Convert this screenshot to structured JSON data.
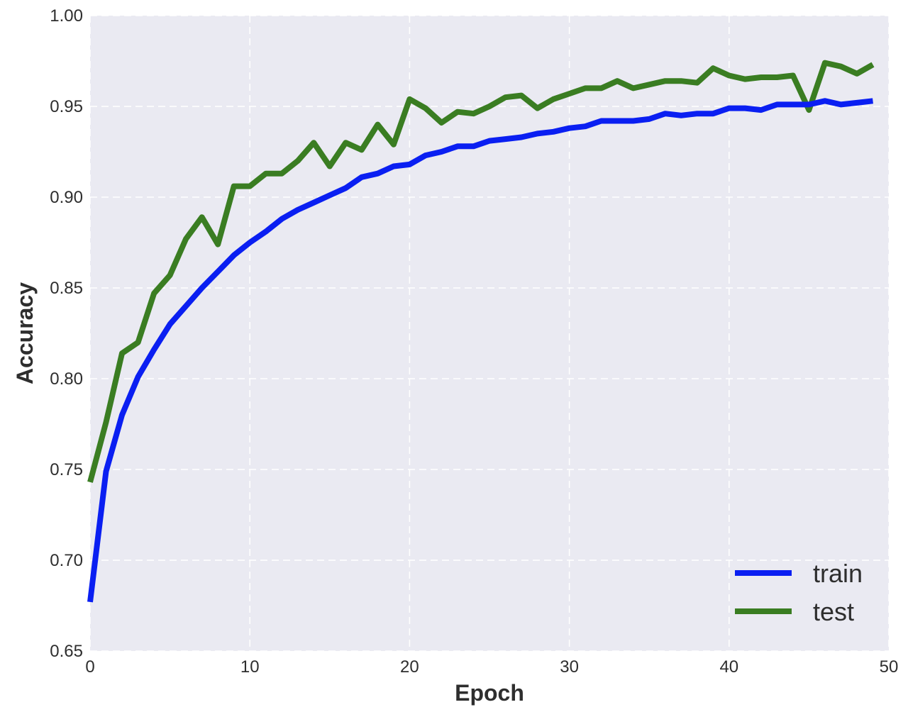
{
  "chart_data": {
    "type": "line",
    "title": "",
    "xlabel": "Epoch",
    "ylabel": "Accuracy",
    "xlim": [
      0,
      50
    ],
    "ylim": [
      0.65,
      1.0
    ],
    "xticks": [
      0,
      10,
      20,
      30,
      40,
      50
    ],
    "xtick_labels": [
      "0",
      "10",
      "20",
      "30",
      "40",
      "50"
    ],
    "yticks": [
      0.65,
      0.7,
      0.75,
      0.8,
      0.85,
      0.9,
      0.95,
      1.0
    ],
    "ytick_labels": [
      "0.65",
      "0.70",
      "0.75",
      "0.80",
      "0.85",
      "0.90",
      "0.95",
      "1.00"
    ],
    "grid": true,
    "legend_position": "bottom-right",
    "background_color": "#eaeaf2",
    "grid_color": "#ffffff",
    "x": [
      0,
      1,
      2,
      3,
      4,
      5,
      6,
      7,
      8,
      9,
      10,
      11,
      12,
      13,
      14,
      15,
      16,
      17,
      18,
      19,
      20,
      21,
      22,
      23,
      24,
      25,
      26,
      27,
      28,
      29,
      30,
      31,
      32,
      33,
      34,
      35,
      36,
      37,
      38,
      39,
      40,
      41,
      42,
      43,
      44,
      45,
      46,
      47,
      48,
      49
    ],
    "series": [
      {
        "name": "train",
        "color": "#0a1ff2",
        "values": [
          0.677,
          0.749,
          0.78,
          0.801,
          0.816,
          0.83,
          0.84,
          0.85,
          0.859,
          0.868,
          0.875,
          0.881,
          0.888,
          0.893,
          0.897,
          0.901,
          0.905,
          0.911,
          0.913,
          0.917,
          0.918,
          0.923,
          0.925,
          0.928,
          0.928,
          0.931,
          0.932,
          0.933,
          0.935,
          0.936,
          0.938,
          0.939,
          0.942,
          0.942,
          0.942,
          0.943,
          0.946,
          0.945,
          0.946,
          0.946,
          0.949,
          0.949,
          0.948,
          0.951,
          0.951,
          0.951,
          0.953,
          0.951,
          0.952,
          0.953
        ]
      },
      {
        "name": "test",
        "color": "#3a7d22",
        "values": [
          0.743,
          0.776,
          0.814,
          0.82,
          0.847,
          0.857,
          0.877,
          0.889,
          0.874,
          0.906,
          0.906,
          0.913,
          0.913,
          0.92,
          0.93,
          0.917,
          0.93,
          0.926,
          0.94,
          0.929,
          0.954,
          0.949,
          0.941,
          0.947,
          0.946,
          0.95,
          0.955,
          0.956,
          0.949,
          0.954,
          0.957,
          0.96,
          0.96,
          0.964,
          0.96,
          0.962,
          0.964,
          0.964,
          0.963,
          0.971,
          0.967,
          0.965,
          0.966,
          0.966,
          0.967,
          0.948,
          0.974,
          0.972,
          0.968,
          0.973
        ]
      }
    ]
  }
}
